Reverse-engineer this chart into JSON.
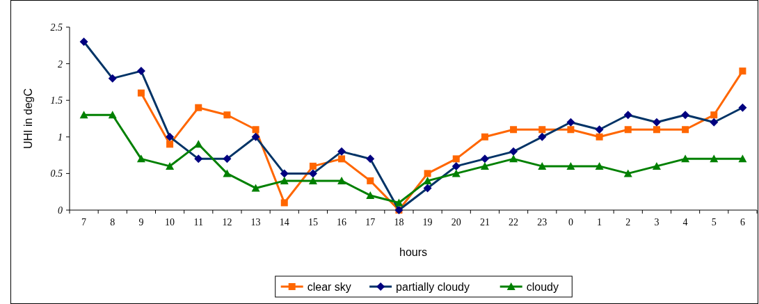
{
  "chart_data": {
    "type": "line",
    "xlabel": "hours",
    "ylabel": "UHI in degC",
    "categories": [
      "7",
      "8",
      "9",
      "10",
      "11",
      "12",
      "13",
      "14",
      "15",
      "16",
      "17",
      "18",
      "19",
      "20",
      "21",
      "22",
      "23",
      "0",
      "1",
      "2",
      "3",
      "4",
      "5",
      "6"
    ],
    "series": [
      {
        "name": "clear sky",
        "color": "#ff6600",
        "marker": "square",
        "values": [
          null,
          null,
          1.6,
          0.9,
          1.4,
          1.3,
          1.1,
          0.1,
          0.6,
          0.7,
          0.4,
          0,
          0.5,
          0.7,
          1.0,
          1.1,
          1.1,
          1.1,
          1.0,
          1.1,
          1.1,
          1.1,
          1.3,
          1.9
        ]
      },
      {
        "name": "partially cloudy",
        "color": "#003366",
        "marker": "diamond",
        "values": [
          2.3,
          1.8,
          1.9,
          1.0,
          0.7,
          0.7,
          1.0,
          0.5,
          0.5,
          0.8,
          0.7,
          0,
          0.3,
          0.6,
          0.7,
          0.8,
          1.0,
          1.2,
          1.1,
          1.3,
          1.2,
          1.3,
          1.2,
          1.4
        ]
      },
      {
        "name": "cloudy",
        "color": "#008000",
        "marker": "triangle",
        "values": [
          1.3,
          1.3,
          0.7,
          0.6,
          0.9,
          0.5,
          0.3,
          0.4,
          0.4,
          0.4,
          0.2,
          0.1,
          0.4,
          0.5,
          0.6,
          0.7,
          0.6,
          0.6,
          0.6,
          0.5,
          0.6,
          0.7,
          0.7,
          0.7
        ]
      }
    ],
    "ylim": [
      0,
      2.5
    ],
    "yticks": [
      0,
      0.5,
      1,
      1.5,
      2,
      2.5
    ],
    "grid": false,
    "legend": "bottom",
    "line_style": "solid"
  }
}
